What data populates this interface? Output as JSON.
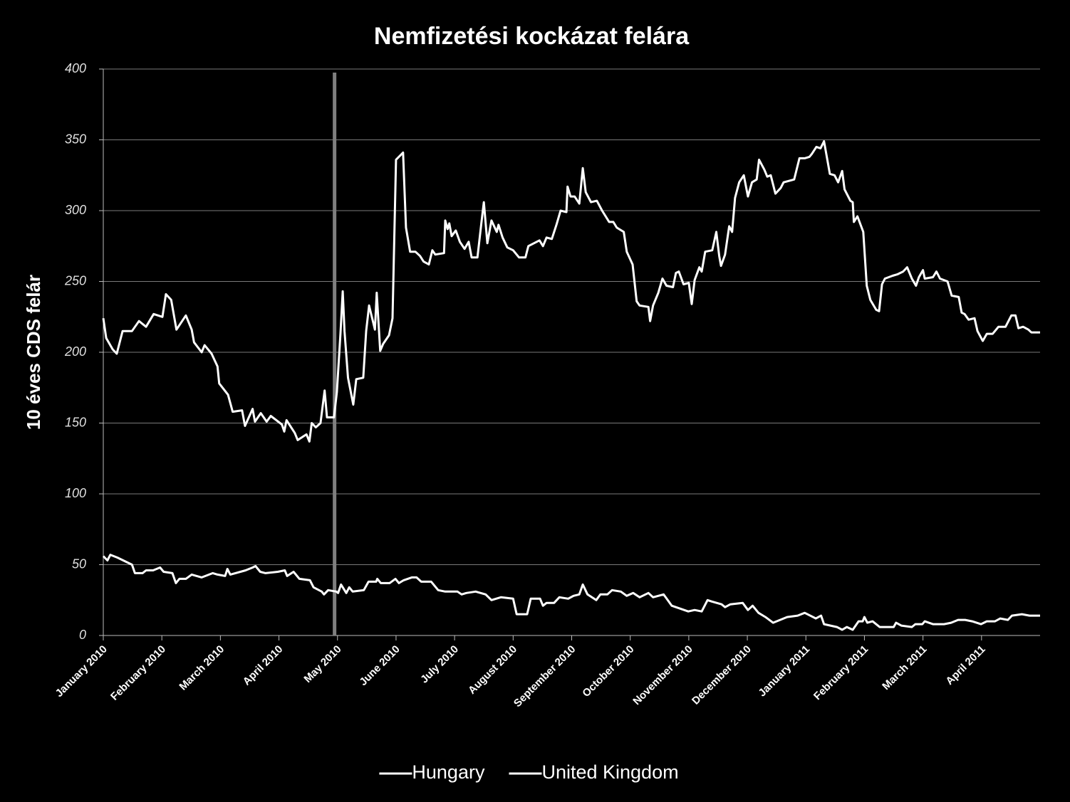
{
  "chart_data": {
    "type": "line",
    "title": "Nemfizetési kockázat felára",
    "y_label": "10 éves CDS felár",
    "ylim": [
      0,
      400
    ],
    "yticks": [
      0,
      50,
      100,
      150,
      200,
      250,
      300,
      350,
      400
    ],
    "xlim": [
      0,
      16
    ],
    "xticks": [
      {
        "value": 0,
        "label": "January 2010"
      },
      {
        "value": 1,
        "label": "February 2010"
      },
      {
        "value": 2,
        "label": "March 2010"
      },
      {
        "value": 3,
        "label": "April 2010"
      },
      {
        "value": 4,
        "label": "May 2010"
      },
      {
        "value": 5,
        "label": "June 2010"
      },
      {
        "value": 6,
        "label": "July 2010"
      },
      {
        "value": 7,
        "label": "August 2010"
      },
      {
        "value": 8,
        "label": "September 2010"
      },
      {
        "value": 9,
        "label": "October 2010"
      },
      {
        "value": 10,
        "label": "November 2010"
      },
      {
        "value": 11,
        "label": "December 2010"
      },
      {
        "value": 12,
        "label": "January 2011"
      },
      {
        "value": 13,
        "label": "February 2011"
      },
      {
        "value": 14,
        "label": "March 2011"
      },
      {
        "value": 15,
        "label": "April 2011"
      }
    ],
    "grid": true,
    "legend": "bottom",
    "vline": {
      "x": 3.95,
      "color": "#7f7f7f"
    },
    "series": [
      {
        "name": "Hungary",
        "color": "#ffffff",
        "x": [
          0,
          0.05,
          0.16,
          0.23,
          0.33,
          0.49,
          0.61,
          0.73,
          0.86,
          1.01,
          1.07,
          1.16,
          1.25,
          1.41,
          1.51,
          1.55,
          1.68,
          1.73,
          1.85,
          1.95,
          1.98,
          2.13,
          2.21,
          2.37,
          2.42,
          2.55,
          2.59,
          2.69,
          2.79,
          2.86,
          3.05,
          3.09,
          3.13,
          3.27,
          3.32,
          3.47,
          3.52,
          3.56,
          3.63,
          3.71,
          3.78,
          3.82,
          3.94,
          3.99,
          4.05,
          4.09,
          4.12,
          4.18,
          4.27,
          4.32,
          4.44,
          4.49,
          4.54,
          4.64,
          4.67,
          4.73,
          4.78,
          4.88,
          4.94,
          5.0,
          5.12,
          5.17,
          5.24,
          5.33,
          5.41,
          5.47,
          5.56,
          5.62,
          5.67,
          5.82,
          5.84,
          5.88,
          5.91,
          5.95,
          6.02,
          6.09,
          6.17,
          6.24,
          6.29,
          6.39,
          6.46,
          6.5,
          6.56,
          6.63,
          6.72,
          6.75,
          6.82,
          6.9,
          7.0,
          7.1,
          7.21,
          7.26,
          7.45,
          7.51,
          7.57,
          7.66,
          7.74,
          7.81,
          7.91,
          7.93,
          7.98,
          8.05,
          8.13,
          8.19,
          8.24,
          8.33,
          8.43,
          8.52,
          8.64,
          8.71,
          8.77,
          8.89,
          8.94,
          9.04,
          9.11,
          9.16,
          9.31,
          9.34,
          9.39,
          9.48,
          9.55,
          9.62,
          9.73,
          9.78,
          9.83,
          9.91,
          10.0,
          10.05,
          10.1,
          10.18,
          10.22,
          10.28,
          10.4,
          10.47,
          10.52,
          10.55,
          10.62,
          10.69,
          10.74,
          10.79,
          10.86,
          10.94,
          11.01,
          11.08,
          11.16,
          11.2,
          11.29,
          11.34,
          11.4,
          11.48,
          11.57,
          11.62,
          11.8,
          11.89,
          11.98,
          12.06,
          12.1,
          12.18,
          12.25,
          12.31,
          12.41,
          12.49,
          12.55,
          12.62,
          12.66,
          12.76,
          12.8,
          12.82,
          12.88,
          12.98,
          13.04,
          13.1,
          13.2,
          13.25,
          13.3,
          13.35,
          13.48,
          13.56,
          13.66,
          13.73,
          13.81,
          13.88,
          13.93,
          14.0,
          14.03,
          14.17,
          14.23,
          14.29,
          14.42,
          14.49,
          14.61,
          14.66,
          14.71,
          14.78,
          14.88,
          14.93,
          15.02,
          15.09,
          15.19,
          15.29,
          15.41,
          15.51,
          15.58,
          15.63,
          15.71,
          15.8,
          15.85,
          16.0
        ],
        "values": [
          224,
          210,
          202,
          199,
          215,
          215,
          222,
          218,
          227,
          225,
          241,
          237,
          216,
          226,
          216,
          207,
          200,
          205,
          199,
          190,
          178,
          170,
          158,
          159,
          148,
          160,
          151,
          157,
          151,
          155,
          149,
          144,
          152,
          143,
          138,
          142,
          137,
          150,
          147,
          150,
          173,
          154,
          154,
          172,
          213,
          243,
          215,
          182,
          163,
          181,
          182,
          215,
          233,
          216,
          242,
          201,
          206,
          212,
          224,
          336,
          341,
          288,
          271,
          271,
          268,
          264,
          262,
          272,
          269,
          270,
          293,
          287,
          291,
          282,
          286,
          278,
          273,
          278,
          267,
          267,
          292,
          306,
          277,
          293,
          285,
          290,
          281,
          274,
          272,
          267,
          267,
          275,
          279,
          275,
          281,
          280,
          290,
          300,
          299,
          317,
          310,
          310,
          305,
          330,
          313,
          306,
          307,
          300,
          292,
          292,
          288,
          285,
          271,
          262,
          236,
          233,
          232,
          222,
          233,
          242,
          252,
          247,
          246,
          256,
          257,
          248,
          249,
          234,
          251,
          260,
          257,
          271,
          272,
          285,
          268,
          261,
          269,
          289,
          285,
          309,
          320,
          325,
          310,
          320,
          322,
          336,
          329,
          324,
          325,
          312,
          316,
          320,
          322,
          337,
          337,
          338,
          340,
          345,
          344,
          349,
          326,
          325,
          320,
          328,
          315,
          307,
          306,
          292,
          296,
          285,
          247,
          237,
          230,
          229,
          248,
          252,
          254,
          255,
          257,
          260,
          252,
          247,
          253,
          258,
          252,
          253,
          257,
          252,
          250,
          240,
          239,
          228,
          227,
          223,
          224,
          215,
          208,
          213,
          213,
          218,
          218,
          226,
          226,
          217,
          218,
          216,
          214,
          214
        ]
      },
      {
        "name": "United Kingdom",
        "color": "#ffffff",
        "x": [
          0,
          0.07,
          0.12,
          0.24,
          0.39,
          0.49,
          0.54,
          0.67,
          0.73,
          0.85,
          0.97,
          1.03,
          1.18,
          1.24,
          1.3,
          1.41,
          1.51,
          1.68,
          1.87,
          1.95,
          2.08,
          2.12,
          2.17,
          2.43,
          2.55,
          2.6,
          2.68,
          2.77,
          2.98,
          3.1,
          3.14,
          3.25,
          3.35,
          3.53,
          3.59,
          3.73,
          3.77,
          3.84,
          3.98,
          4.01,
          4.06,
          4.15,
          4.2,
          4.26,
          4.45,
          4.53,
          4.66,
          4.68,
          4.74,
          4.89,
          4.99,
          5.05,
          5.13,
          5.27,
          5.35,
          5.43,
          5.6,
          5.72,
          5.84,
          6.05,
          6.12,
          6.2,
          6.36,
          6.53,
          6.63,
          6.79,
          7.0,
          7.06,
          7.24,
          7.3,
          7.46,
          7.51,
          7.57,
          7.7,
          7.79,
          7.94,
          8.03,
          8.13,
          8.19,
          8.27,
          8.42,
          8.49,
          8.61,
          8.69,
          8.84,
          8.94,
          9.05,
          9.16,
          9.31,
          9.39,
          9.57,
          9.64,
          9.71,
          9.78,
          9.99,
          10.1,
          10.22,
          10.32,
          10.39,
          10.56,
          10.62,
          10.71,
          10.92,
          11.01,
          11.09,
          11.19,
          11.31,
          11.44,
          11.68,
          11.86,
          11.98,
          12.17,
          12.26,
          12.31,
          12.53,
          12.62,
          12.7,
          12.8,
          12.9,
          12.97,
          13.0,
          13.05,
          13.14,
          13.26,
          13.5,
          13.54,
          13.63,
          13.81,
          13.87,
          13.99,
          14.03,
          14.17,
          14.26,
          14.36,
          14.48,
          14.6,
          14.72,
          14.84,
          14.99,
          15.09,
          15.23,
          15.32,
          15.45,
          15.52,
          15.69,
          15.82,
          16.0
        ],
        "values": [
          56,
          53,
          57,
          55,
          52,
          50,
          44,
          44,
          46,
          46,
          48,
          45,
          44,
          37,
          40,
          40,
          43,
          41,
          44,
          43,
          42,
          47,
          43,
          46,
          48,
          49,
          45,
          44,
          45,
          46,
          42,
          45,
          40,
          39,
          34,
          31,
          29,
          32,
          31,
          30,
          36,
          30,
          34,
          31,
          32,
          38,
          38,
          40,
          37,
          37,
          40,
          37,
          39,
          41,
          41,
          38,
          38,
          32,
          31,
          31,
          29,
          30,
          31,
          29,
          25,
          27,
          26,
          15,
          15,
          26,
          26,
          21,
          23,
          23,
          27,
          26,
          28,
          29,
          36,
          29,
          25,
          29,
          29,
          32,
          31,
          28,
          30,
          27,
          30,
          27,
          29,
          25,
          21,
          20,
          17,
          18,
          17,
          25,
          24,
          22,
          20,
          22,
          23,
          18,
          21,
          16,
          13,
          9,
          13,
          14,
          16,
          12,
          14,
          8,
          6,
          4,
          6,
          4,
          10,
          10,
          13,
          9,
          10,
          6,
          6,
          9,
          7,
          6,
          8,
          8,
          10,
          8,
          8,
          8,
          9,
          11,
          11,
          10,
          8,
          10,
          10,
          12,
          11,
          14,
          15,
          14,
          14
        ]
      }
    ]
  }
}
